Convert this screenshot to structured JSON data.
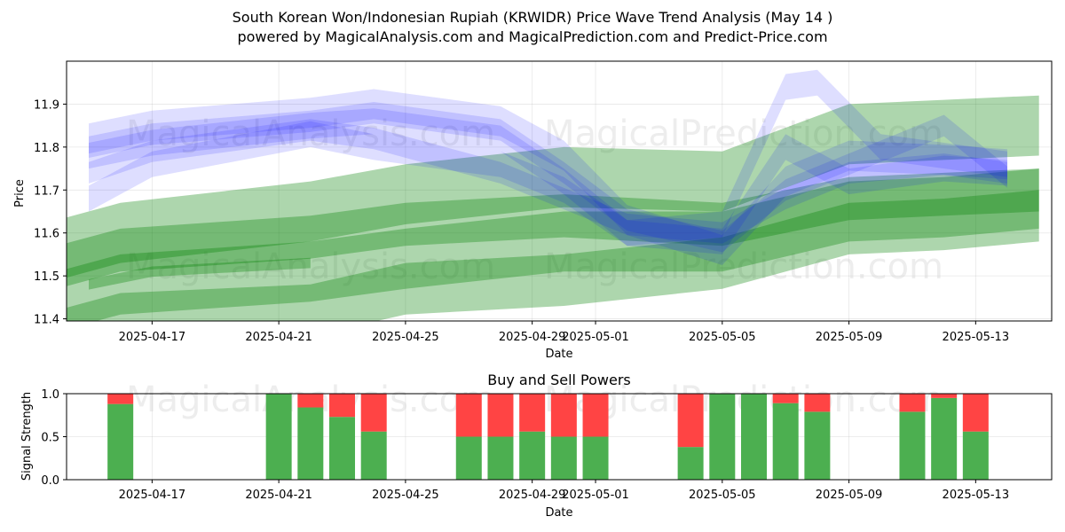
{
  "title_line1": "South Korean Won/Indonesian Rupiah (KRWIDR) Price Wave Trend Analysis (May 14 )",
  "title_line2": "powered by MagicalAnalysis.com and MagicalPrediction.com and Predict-Price.com",
  "watermarks": [
    "MagicalAnalysis.com",
    "MagicalPrediction.com"
  ],
  "colors": {
    "blue": "#0000ff",
    "green": "#008000",
    "buy": "#4caf50",
    "sell": "#ff4444",
    "grid": "#b0b0b0"
  },
  "chart_data": [
    {
      "type": "area",
      "title": "",
      "xlabel": "Date",
      "ylabel": "Price",
      "ylim": [
        11.4,
        12.0
      ],
      "xlim": [
        "2025-04-14",
        "2025-05-15"
      ],
      "grid": true,
      "xticks": [
        "2025-04-17",
        "2025-04-21",
        "2025-04-25",
        "2025-04-29",
        "2025-05-01",
        "2025-05-05",
        "2025-05-09",
        "2025-05-13"
      ],
      "yticks": [
        "11.4",
        "11.5",
        "11.6",
        "11.7",
        "11.8",
        "11.9"
      ],
      "blue_bands": [
        {
          "x": [
            "2025-04-15",
            "2025-04-17",
            "2025-04-22",
            "2025-04-24",
            "2025-04-28",
            "2025-04-30",
            "2025-05-02",
            "2025-05-05",
            "2025-05-07",
            "2025-05-09",
            "2025-05-12",
            "2025-05-14"
          ],
          "y": [
            11.82,
            11.85,
            11.88,
            11.9,
            11.86,
            11.78,
            11.63,
            11.56,
            11.72,
            11.78,
            11.77,
            11.76
          ],
          "w": 0.035
        },
        {
          "x": [
            "2025-04-15",
            "2025-04-17",
            "2025-04-22",
            "2025-04-24",
            "2025-04-28",
            "2025-04-30",
            "2025-05-02",
            "2025-05-05",
            "2025-05-07",
            "2025-05-09",
            "2025-05-12",
            "2025-05-14"
          ],
          "y": [
            11.78,
            11.81,
            11.85,
            11.86,
            11.82,
            11.72,
            11.6,
            11.58,
            11.8,
            11.72,
            11.75,
            11.74
          ],
          "w": 0.03
        },
        {
          "x": [
            "2025-04-15",
            "2025-04-17",
            "2025-04-22",
            "2025-04-24",
            "2025-04-28",
            "2025-04-30",
            "2025-05-02",
            "2025-05-05",
            "2025-05-07",
            "2025-05-08",
            "2025-05-10",
            "2025-05-14"
          ],
          "y": [
            11.68,
            11.76,
            11.83,
            11.8,
            11.76,
            11.7,
            11.6,
            11.62,
            11.94,
            11.95,
            11.8,
            11.76
          ],
          "w": 0.03
        },
        {
          "x": [
            "2025-04-15",
            "2025-04-17",
            "2025-04-22",
            "2025-04-24",
            "2025-04-28",
            "2025-04-30",
            "2025-05-02",
            "2025-05-05",
            "2025-05-07",
            "2025-05-09",
            "2025-05-12",
            "2025-05-14"
          ],
          "y": [
            11.74,
            11.79,
            11.84,
            11.82,
            11.74,
            11.68,
            11.62,
            11.6,
            11.68,
            11.74,
            11.76,
            11.74
          ],
          "w": 0.025
        },
        {
          "x": [
            "2025-04-15",
            "2025-04-17",
            "2025-04-22",
            "2025-04-24",
            "2025-04-28",
            "2025-04-30",
            "2025-05-02",
            "2025-05-05",
            "2025-05-07",
            "2025-05-09",
            "2025-05-12",
            "2025-05-14"
          ],
          "y": [
            11.8,
            11.83,
            11.86,
            11.88,
            11.84,
            11.74,
            11.63,
            11.58,
            11.7,
            11.76,
            11.85,
            11.73
          ],
          "w": 0.025
        }
      ],
      "green_bands": [
        {
          "x": [
            "2025-04-14",
            "2025-04-16",
            "2025-04-22",
            "2025-04-25",
            "2025-04-30",
            "2025-05-05",
            "2025-05-09",
            "2025-05-12",
            "2025-05-15"
          ],
          "y": [
            11.56,
            11.6,
            11.65,
            11.69,
            11.73,
            11.72,
            11.83,
            11.84,
            11.85
          ],
          "w": 0.07
        },
        {
          "x": [
            "2025-04-14",
            "2025-04-16",
            "2025-04-22",
            "2025-04-25",
            "2025-04-30",
            "2025-05-05",
            "2025-05-09",
            "2025-05-12",
            "2025-05-15"
          ],
          "y": [
            11.52,
            11.56,
            11.59,
            11.62,
            11.64,
            11.62,
            11.68,
            11.69,
            11.7
          ],
          "w": 0.05
        },
        {
          "x": [
            "2025-04-14",
            "2025-04-16",
            "2025-04-22",
            "2025-04-25",
            "2025-04-30",
            "2025-05-05",
            "2025-05-09",
            "2025-05-12",
            "2025-05-15"
          ],
          "y": [
            11.44,
            11.48,
            11.51,
            11.54,
            11.58,
            11.58,
            11.65,
            11.66,
            11.68
          ],
          "w": 0.07
        },
        {
          "x": [
            "2025-04-14",
            "2025-04-16",
            "2025-04-22",
            "2025-04-25",
            "2025-04-30",
            "2025-05-05",
            "2025-05-09",
            "2025-05-12",
            "2025-05-15"
          ],
          "y": [
            11.36,
            11.4,
            11.42,
            11.47,
            11.49,
            11.53,
            11.61,
            11.62,
            11.64
          ],
          "w": 0.06
        },
        {
          "x": [
            "2025-04-15",
            "2025-04-17",
            "2025-04-22"
          ],
          "y": [
            11.48,
            11.51,
            11.53
          ],
          "w": 0.012
        }
      ]
    },
    {
      "type": "bar",
      "title": "Buy and Sell Powers",
      "xlabel": "Date",
      "ylabel": "Signal Strength",
      "ylim": [
        0.0,
        1.0
      ],
      "grid": true,
      "xticks": [
        "2025-04-17",
        "2025-04-21",
        "2025-04-25",
        "2025-04-29",
        "2025-05-01",
        "2025-05-05",
        "2025-05-09",
        "2025-05-13"
      ],
      "yticks": [
        "0.0",
        "0.5",
        "1.0"
      ],
      "categories": [
        "2025-04-16",
        "2025-04-21",
        "2025-04-22",
        "2025-04-23",
        "2025-04-24",
        "2025-04-27",
        "2025-04-28",
        "2025-04-29",
        "2025-04-30",
        "2025-05-01",
        "2025-05-04",
        "2025-05-05",
        "2025-05-06",
        "2025-05-07",
        "2025-05-08",
        "2025-05-11",
        "2025-05-12",
        "2025-05-13"
      ],
      "series": [
        {
          "name": "Buy",
          "values": [
            0.88,
            1.0,
            0.84,
            0.73,
            0.56,
            0.5,
            0.5,
            0.56,
            0.5,
            0.5,
            0.38,
            1.0,
            1.0,
            0.89,
            0.79,
            0.79,
            0.95,
            0.56
          ]
        },
        {
          "name": "Sell",
          "values": [
            0.12,
            0.0,
            0.16,
            0.27,
            0.44,
            0.5,
            0.5,
            0.44,
            0.5,
            0.5,
            0.62,
            0.0,
            0.0,
            0.11,
            0.21,
            0.21,
            0.05,
            0.44
          ]
        }
      ]
    }
  ]
}
